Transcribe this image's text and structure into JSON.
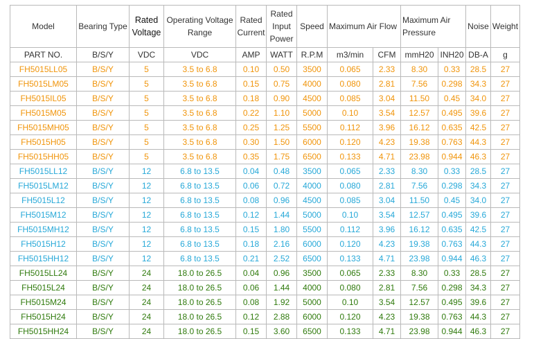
{
  "headers": [
    "Model",
    "Bearing Type",
    "Rated Voltage",
    "Operating Voltage Range",
    "Rated Current",
    "Rated Input Power",
    "Speed",
    "Maximum Air Flow",
    "Maximum Air Pressure",
    "Noise",
    "Weight"
  ],
  "units": [
    "PART NO.",
    "B/S/Y",
    "VDC",
    "VDC",
    "AMP",
    "WATT",
    "R.P.M",
    "m3/min",
    "CFM",
    "mmH20",
    "INH20",
    "DB-A",
    "g"
  ],
  "colors": {
    "orange": "#f0940a",
    "cyan": "#26a8d8",
    "green": "#2f7a0c",
    "border": "#b9b9b9"
  },
  "rows": [
    {
      "group": "orange",
      "cells": [
        "FH5015LL05",
        "B/S/Y",
        "5",
        "3.5 to 6.8",
        "0.10",
        "0.50",
        "3500",
        "0.065",
        "2.33",
        "8.30",
        "0.33",
        "28.5",
        "27"
      ]
    },
    {
      "group": "orange",
      "cells": [
        "FH5015LM05",
        "B/S/Y",
        "5",
        "3.5 to 6.8",
        "0.15",
        "0.75",
        "4000",
        "0.080",
        "2.81",
        "7.56",
        "0.298",
        "34.3",
        "27"
      ]
    },
    {
      "group": "orange",
      "cells": [
        "FH5015IL05",
        "B/S/Y",
        "5",
        "3.5 to 6.8",
        "0.18",
        "0.90",
        "4500",
        "0.085",
        "3.04",
        "11.50",
        "0.45",
        "34.0",
        "27"
      ]
    },
    {
      "group": "orange",
      "cells": [
        "FH5015M05",
        "B/S/Y",
        "5",
        "3.5 to 6.8",
        "0.22",
        "1.10",
        "5000",
        "0.10",
        "3.54",
        "12.57",
        "0.495",
        "39.6",
        "27"
      ]
    },
    {
      "group": "orange",
      "cells": [
        "FH5015MH05",
        "B/S/Y",
        "5",
        "3.5 to 6.8",
        "0.25",
        "1.25",
        "5500",
        "0.112",
        "3.96",
        "16.12",
        "0.635",
        "42.5",
        "27"
      ]
    },
    {
      "group": "orange",
      "cells": [
        "FH5015H05",
        "B/S/Y",
        "5",
        "3.5 to 6.8",
        "0.30",
        "1.50",
        "6000",
        "0.120",
        "4.23",
        "19.38",
        "0.763",
        "44.3",
        "27"
      ]
    },
    {
      "group": "orange",
      "cells": [
        "FH5015HH05",
        "B/S/Y",
        "5",
        "3.5 to 6.8",
        "0.35",
        "1.75",
        "6500",
        "0.133",
        "4.71",
        "23.98",
        "0.944",
        "46.3",
        "27"
      ]
    },
    {
      "group": "cyan",
      "cells": [
        "FH5015LL12",
        "B/S/Y",
        "12",
        "6.8 to 13.5",
        "0.04",
        "0.48",
        "3500",
        "0.065",
        "2.33",
        "8.30",
        "0.33",
        "28.5",
        "27"
      ]
    },
    {
      "group": "cyan",
      "cells": [
        "FH5015LM12",
        "B/S/Y",
        "12",
        "6.8 to 13.5",
        "0.06",
        "0.72",
        "4000",
        "0.080",
        "2.81",
        "7.56",
        "0.298",
        "34.3",
        "27"
      ]
    },
    {
      "group": "cyan",
      "cells": [
        "FH5015L12",
        "B/S/Y",
        "12",
        "6.8 to 13.5",
        "0.08",
        "0.96",
        "4500",
        "0.085",
        "3.04",
        "11.50",
        "0.45",
        "34.0",
        "27"
      ]
    },
    {
      "group": "cyan",
      "cells": [
        "FH5015M12",
        "B/S/Y",
        "12",
        "6.8 to 13.5",
        "0.12",
        "1.44",
        "5000",
        "0.10",
        "3.54",
        "12.57",
        "0.495",
        "39.6",
        "27"
      ]
    },
    {
      "group": "cyan",
      "cells": [
        "FH5015MH12",
        "B/S/Y",
        "12",
        "6.8 to 13.5",
        "0.15",
        "1.80",
        "5500",
        "0.112",
        "3.96",
        "16.12",
        "0.635",
        "42.5",
        "27"
      ]
    },
    {
      "group": "cyan",
      "cells": [
        "FH5015H12",
        "B/S/Y",
        "12",
        "6.8 to 13.5",
        "0.18",
        "2.16",
        "6000",
        "0.120",
        "4.23",
        "19.38",
        "0.763",
        "44.3",
        "27"
      ]
    },
    {
      "group": "cyan",
      "cells": [
        "FH5015HH12",
        "B/S/Y",
        "12",
        "6.8 to 13.5",
        "0.21",
        "2.52",
        "6500",
        "0.133",
        "4.71",
        "23.98",
        "0.944",
        "46.3",
        "27"
      ]
    },
    {
      "group": "green",
      "cells": [
        "FH5015LL24",
        "B/S/Y",
        "24",
        "18.0 to 26.5",
        "0.04",
        "0.96",
        "3500",
        "0.065",
        "2.33",
        "8.30",
        "0.33",
        "28.5",
        "27"
      ]
    },
    {
      "group": "green",
      "cells": [
        "FH5015L24",
        "B/S/Y",
        "24",
        "18.0 to 26.5",
        "0.06",
        "1.44",
        "4000",
        "0.080",
        "2.81",
        "7.56",
        "0.298",
        "34.3",
        "27"
      ]
    },
    {
      "group": "green",
      "cells": [
        "FH5015M24",
        "B/S/Y",
        "24",
        "18.0 to 26.5",
        "0.08",
        "1.92",
        "5000",
        "0.10",
        "3.54",
        "12.57",
        "0.495",
        "39.6",
        "27"
      ]
    },
    {
      "group": "green",
      "cells": [
        "FH5015H24",
        "B/S/Y",
        "24",
        "18.0 to 26.5",
        "0.12",
        "2.88",
        "6000",
        "0.120",
        "4.23",
        "19.38",
        "0.763",
        "44.3",
        "27"
      ]
    },
    {
      "group": "green",
      "cells": [
        "FH5015HH24",
        "B/S/Y",
        "24",
        "18.0 to 26.5",
        "0.15",
        "3.60",
        "6500",
        "0.133",
        "4.71",
        "23.98",
        "0.944",
        "46.3",
        "27"
      ]
    }
  ]
}
